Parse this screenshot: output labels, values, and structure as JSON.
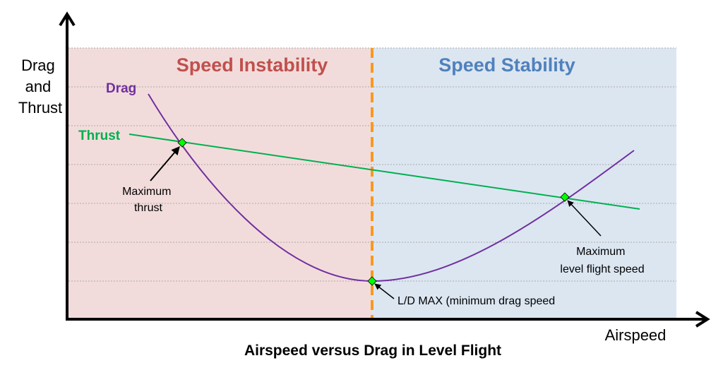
{
  "title": "Airspeed versus Drag in Level Flight",
  "axes": {
    "y_label_lines": [
      "Drag",
      "and",
      "Thrust"
    ],
    "x_label": "Airspeed"
  },
  "regions": {
    "left": {
      "label": "Speed Instability",
      "color": "#c0504d",
      "fill": "#f2dcdb"
    },
    "right": {
      "label": "Speed Stability",
      "color": "#4f81bd",
      "fill": "#dce6f1"
    }
  },
  "curves": {
    "drag": {
      "label": "Drag",
      "color": "#7030a0"
    },
    "thrust": {
      "label": "Thrust",
      "color": "#00b050"
    }
  },
  "annotations": {
    "max_thrust": [
      "Maximum",
      "thrust"
    ],
    "max_level_speed": [
      "Maximum",
      "level flight speed"
    ],
    "ld_max": "L/D MAX (minimum drag speed"
  },
  "colors": {
    "divider": "#f79a1e",
    "marker": "#00ff00"
  }
}
